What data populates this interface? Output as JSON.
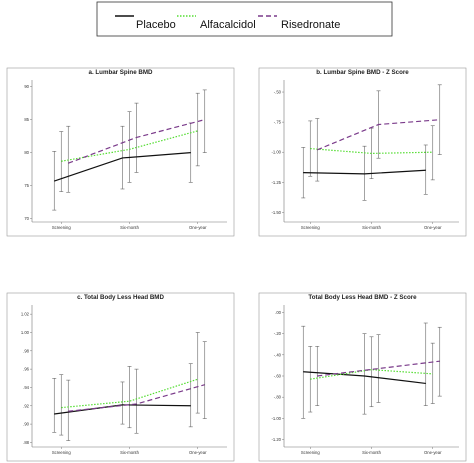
{
  "legend": {
    "items": [
      {
        "label": "Placebo",
        "color": "#111111",
        "dash": "solid"
      },
      {
        "label": "Alfacalcidol",
        "color": "#55dd33",
        "dash": "dotted"
      },
      {
        "label": "Risedronate",
        "color": "#7a3a8a",
        "dash": "dashed"
      }
    ]
  },
  "chart_data": [
    {
      "type": "line",
      "title": "a. Lumbar Spine BMD",
      "categories": [
        "Screening",
        "Six-month",
        "One-year"
      ],
      "yticks": [
        "70",
        "75",
        "80",
        "85",
        "90"
      ],
      "ylim": [
        69.5,
        91
      ],
      "series": [
        {
          "name": "Placebo",
          "values": [
            75.7,
            79.2,
            80.0
          ],
          "ci_low": [
            71.3,
            74.5,
            75.5
          ],
          "ci_high": [
            80.2,
            84.0,
            84.5
          ]
        },
        {
          "name": "Alfacalcidol",
          "values": [
            78.7,
            80.5,
            83.3
          ],
          "ci_low": [
            74.1,
            75.5,
            78.0
          ],
          "ci_high": [
            83.2,
            86.2,
            89.0
          ]
        },
        {
          "name": "Risedronate",
          "values": [
            78.4,
            82.3,
            85.0
          ],
          "ci_low": [
            74.0,
            77.0,
            80.0
          ],
          "ci_high": [
            84.0,
            87.5,
            89.5
          ]
        }
      ]
    },
    {
      "type": "line",
      "title": "b. Lumbar Spine BMD - Z Score",
      "categories": [
        "Screening",
        "Six-month",
        "One-year"
      ],
      "yticks": [
        "-.50",
        "-.75",
        "-1.00",
        "-1.25",
        "-1.50"
      ],
      "ylim": [
        -1.58,
        -0.4
      ],
      "series": [
        {
          "name": "Placebo",
          "values": [
            -1.17,
            -1.18,
            -1.15
          ],
          "ci_low": [
            -1.38,
            -1.4,
            -1.35
          ],
          "ci_high": [
            -0.96,
            -0.95,
            -0.94
          ]
        },
        {
          "name": "Alfacalcidol",
          "values": [
            -0.97,
            -1.01,
            -1.0
          ],
          "ci_low": [
            -1.2,
            -1.22,
            -1.23
          ],
          "ci_high": [
            -0.74,
            -0.8,
            -0.78
          ]
        },
        {
          "name": "Risedronate",
          "values": [
            -0.98,
            -0.77,
            -0.73
          ],
          "ci_low": [
            -1.24,
            -1.05,
            -1.02
          ],
          "ci_high": [
            -0.72,
            -0.49,
            -0.44
          ]
        }
      ]
    },
    {
      "type": "line",
      "title": "c. Total Body Less Head BMD",
      "categories": [
        "Screening",
        "Six-month",
        "One-year"
      ],
      "yticks": [
        "1.02",
        "1.00",
        ".98",
        ".96",
        ".94",
        ".92",
        ".90",
        ".88"
      ],
      "ylim": [
        0.875,
        1.03
      ],
      "series": [
        {
          "name": "Placebo",
          "values": [
            0.911,
            0.921,
            0.92
          ],
          "ci_low": [
            0.891,
            0.9,
            0.897
          ],
          "ci_high": [
            0.95,
            0.946,
            0.966
          ]
        },
        {
          "name": "Alfacalcidol",
          "values": [
            0.918,
            0.925,
            0.949
          ],
          "ci_low": [
            0.888,
            0.896,
            0.912
          ],
          "ci_high": [
            0.954,
            0.963,
            1.0
          ]
        },
        {
          "name": "Risedronate",
          "values": [
            0.914,
            0.922,
            0.943
          ],
          "ci_low": [
            0.882,
            0.89,
            0.906
          ],
          "ci_high": [
            0.948,
            0.96,
            0.99
          ]
        }
      ]
    },
    {
      "type": "line",
      "title": "Total Body Less Head BMD - Z Score",
      "categories": [
        "Screening",
        "Six-month",
        "One-year"
      ],
      "yticks": [
        ".00",
        "-.20",
        "-.40",
        "-.60",
        "-.80",
        "-1.00",
        "-1.20"
      ],
      "ylim": [
        -1.27,
        0.07
      ],
      "series": [
        {
          "name": "Placebo",
          "values": [
            -0.56,
            -0.6,
            -0.67
          ],
          "ci_low": [
            -1.0,
            -0.96,
            -0.88
          ],
          "ci_high": [
            -0.13,
            -0.2,
            -0.1
          ]
        },
        {
          "name": "Alfacalcidol",
          "values": [
            -0.63,
            -0.54,
            -0.58
          ],
          "ci_low": [
            -0.94,
            -0.89,
            -0.86
          ],
          "ci_high": [
            -0.32,
            -0.23,
            -0.29
          ]
        },
        {
          "name": "Risedronate",
          "values": [
            -0.6,
            -0.53,
            -0.46
          ],
          "ci_low": [
            -0.88,
            -0.85,
            -0.79
          ],
          "ci_high": [
            -0.32,
            -0.21,
            -0.14
          ]
        }
      ]
    }
  ]
}
